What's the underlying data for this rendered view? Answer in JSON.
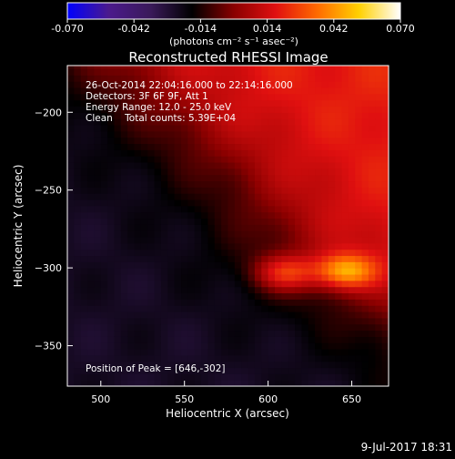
{
  "chart_data": {
    "type": "heatmap",
    "title": "Reconstructed RHESSI Image",
    "xlabel": "Heliocentric X (arcsec)",
    "ylabel": "Heliocentric Y (arcsec)",
    "xlim": [
      480,
      672
    ],
    "ylim": [
      -376,
      -170
    ],
    "x_ticks": [
      500,
      550,
      600,
      650
    ],
    "y_ticks": [
      -200,
      -250,
      -300,
      -350
    ],
    "colorbar": {
      "min": -0.07,
      "max": 0.07,
      "ticks": [
        "-0.070",
        "-0.042",
        "-0.014",
        "0.014",
        "0.042",
        "0.070"
      ],
      "tick_values": [
        -0.07,
        -0.042,
        -0.014,
        0.014,
        0.042,
        0.07
      ],
      "unit_label": "(photons cm⁻² s⁻¹ asec⁻²)"
    },
    "info_lines": [
      "26-Oct-2014 22:04:16.000 to 22:14:16.000",
      "Detectors: 3F 6F 9F, Att 1",
      "Energy Range: 12.0 - 25.0 keV",
      "Clean    Total counts: 5.39E+04"
    ],
    "peak_label": "Position of Peak = [646,-302]",
    "peak_position": [
      646,
      -302
    ],
    "sources": [
      {
        "x": 646,
        "y": -302,
        "value": 0.07
      },
      {
        "x": 610,
        "y": -303,
        "value": 0.058
      }
    ],
    "colormap": [
      "#0000ff",
      "#4b1a8c",
      "#3a1a5a",
      "#000000",
      "#8a0000",
      "#e01010",
      "#ff6a00",
      "#ffd000",
      "#ffffff"
    ]
  },
  "footer_date": "9-Jul-2017 18:31"
}
